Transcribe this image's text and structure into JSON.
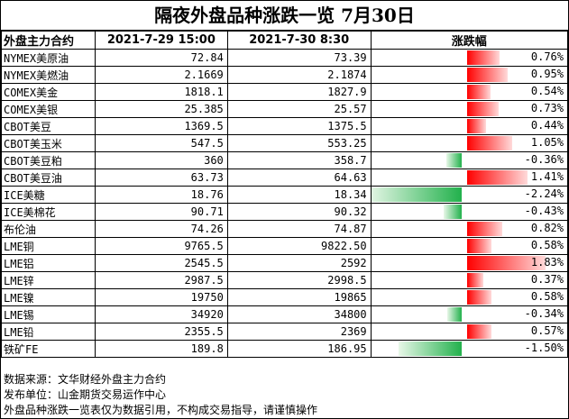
{
  "title": "隔夜外盘品种涨跌一览  7月30日",
  "headers": {
    "name": "外盘主力合约",
    "prev": "2021-7-29 15:00",
    "curr": "2021-7-30 8:30",
    "change": "涨跌幅"
  },
  "colors": {
    "up": "#ff0000",
    "down": "#22b14c"
  },
  "rows": [
    {
      "name": "NYMEX美原油",
      "prev": "72.84",
      "curr": "73.39",
      "pct": "0.76%",
      "value": 0.76
    },
    {
      "name": "NYMEX美燃油",
      "prev": "2.1669",
      "curr": "2.1874",
      "pct": "0.95%",
      "value": 0.95
    },
    {
      "name": "COMEX美金",
      "prev": "1818.1",
      "curr": "1827.9",
      "pct": "0.54%",
      "value": 0.54
    },
    {
      "name": "COMEX美银",
      "prev": "25.385",
      "curr": "25.57",
      "pct": "0.73%",
      "value": 0.73
    },
    {
      "name": "CBOT美豆",
      "prev": "1369.5",
      "curr": "1375.5",
      "pct": "0.44%",
      "value": 0.44
    },
    {
      "name": "CBOT美玉米",
      "prev": "547.5",
      "curr": "553.25",
      "pct": "1.05%",
      "value": 1.05
    },
    {
      "name": "CBOT美豆粕",
      "prev": "360",
      "curr": "358.7",
      "pct": "-0.36%",
      "value": -0.36
    },
    {
      "name": "CBOT美豆油",
      "prev": "63.73",
      "curr": "64.63",
      "pct": "1.41%",
      "value": 1.41
    },
    {
      "name": "ICE美糖",
      "prev": "18.76",
      "curr": "18.34",
      "pct": "-2.24%",
      "value": -2.24
    },
    {
      "name": "ICE美棉花",
      "prev": "90.71",
      "curr": "90.32",
      "pct": "-0.43%",
      "value": -0.43
    },
    {
      "name": "布伦油",
      "prev": "74.26",
      "curr": "74.87",
      "pct": "0.82%",
      "value": 0.82
    },
    {
      "name": "LME铜",
      "prev": "9765.5",
      "curr": "9822.50",
      "pct": "0.58%",
      "value": 0.58
    },
    {
      "name": "LME铝",
      "prev": "2545.5",
      "curr": "2592",
      "pct": "1.83%",
      "value": 1.83
    },
    {
      "name": "LME锌",
      "prev": "2987.5",
      "curr": "2998.5",
      "pct": "0.37%",
      "value": 0.37
    },
    {
      "name": "LME镍",
      "prev": "19750",
      "curr": "19865",
      "pct": "0.58%",
      "value": 0.58
    },
    {
      "name": "LME锡",
      "prev": "34920",
      "curr": "34800",
      "pct": "-0.34%",
      "value": -0.34
    },
    {
      "name": "LME铅",
      "prev": "2355.5",
      "curr": "2369",
      "pct": "0.57%",
      "value": 0.57
    },
    {
      "name": "铁矿FE",
      "prev": "189.8",
      "curr": "186.95",
      "pct": "-1.50%",
      "value": -1.5
    }
  ],
  "notes": {
    "source": "数据来源：文华财经外盘主力合约",
    "publisher": "发布单位：山金期货交易运作中心",
    "disclaimer": "外盘品种涨跌一览表仅为数据引用，不构成交易指导，请谨慎操作"
  }
}
